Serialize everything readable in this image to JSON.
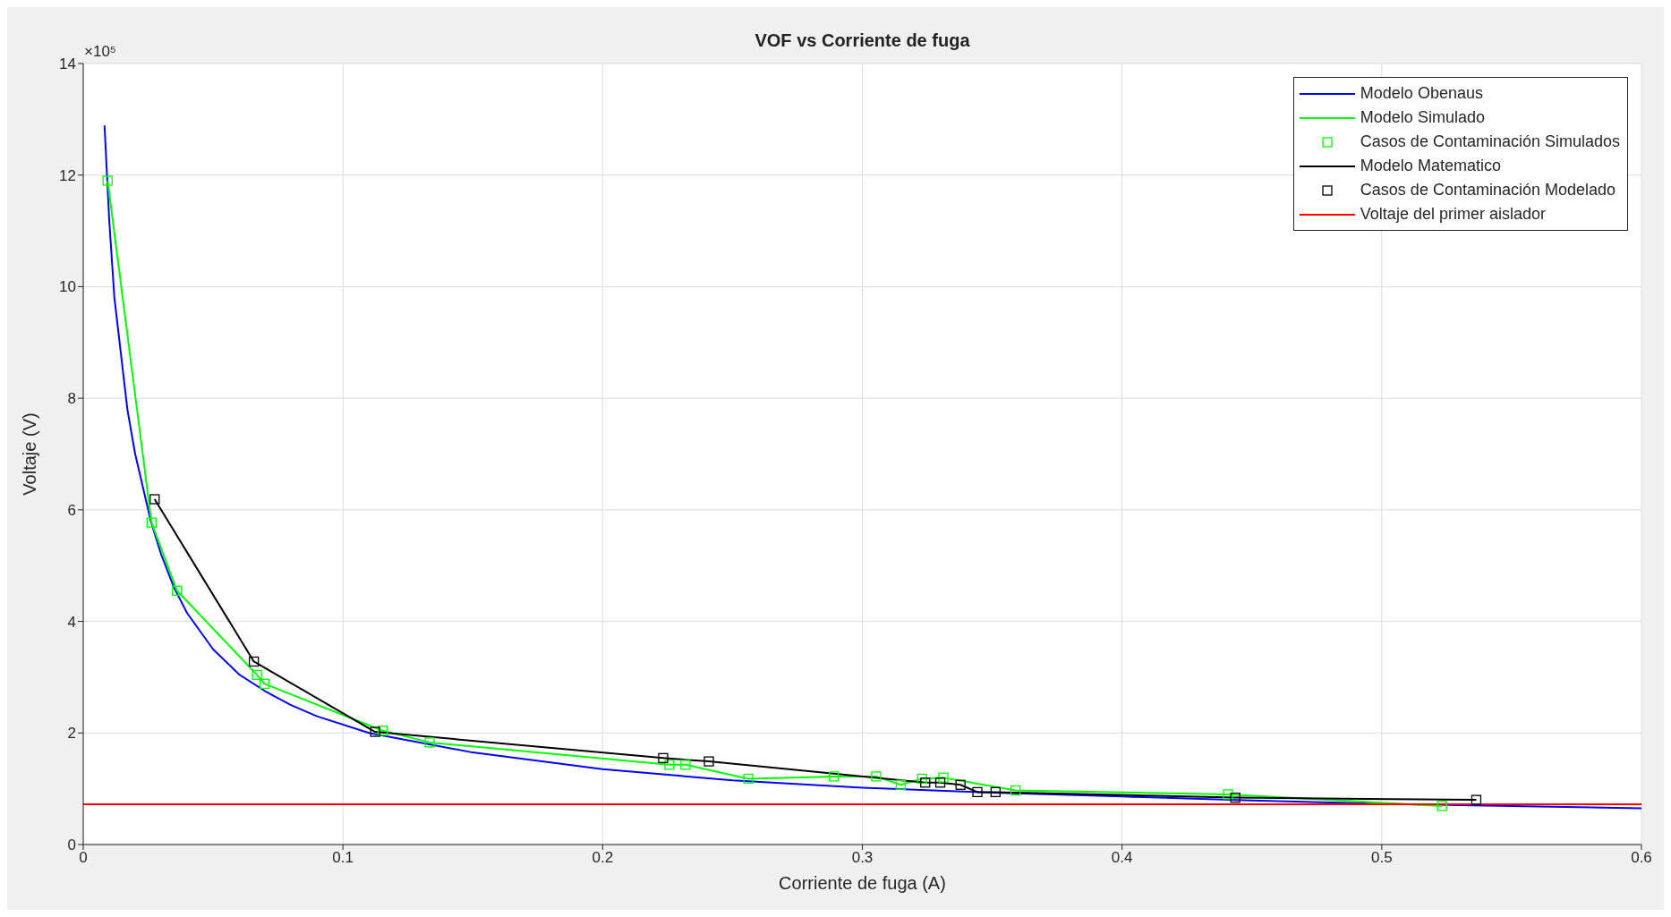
{
  "chart_data": {
    "type": "line",
    "title": "VOF vs Corriente de fuga",
    "xlabel": "Corriente de fuga (A)",
    "ylabel": "Voltaje (V)",
    "annotations": [
      "×10⁵"
    ],
    "xlim": [
      0,
      0.6
    ],
    "xticks": [
      0,
      0.1,
      0.2,
      0.3,
      0.4,
      0.5,
      0.6
    ],
    "ylim": [
      0,
      14
    ],
    "yticks": [
      0,
      2,
      4,
      6,
      8,
      10,
      12,
      14
    ],
    "grid": true,
    "legend": "top right",
    "line_style": "solid",
    "series": [
      {
        "name": "Modelo Obenaus",
        "marker": "none",
        "color": "#0000ff",
        "x": [
          0.0082,
          0.01,
          0.012,
          0.015,
          0.017,
          0.02,
          0.026,
          0.03,
          0.035,
          0.04,
          0.05,
          0.06,
          0.07,
          0.08,
          0.09,
          0.11,
          0.15,
          0.2,
          0.25,
          0.3,
          0.35,
          0.4,
          0.45,
          0.5,
          0.55,
          0.6
        ],
        "values": [
          12.89,
          11.2,
          9.8,
          8.6,
          7.8,
          7.0,
          5.8,
          5.2,
          4.6,
          4.15,
          3.5,
          3.05,
          2.75,
          2.5,
          2.3,
          2.0,
          1.65,
          1.35,
          1.15,
          1.02,
          0.93,
          0.86,
          0.79,
          0.73,
          0.69,
          0.65
        ]
      },
      {
        "name": "Modelo Simulado",
        "marker": "none",
        "color": "#00ff00",
        "x": [
          0.0094,
          0.0263,
          0.0361,
          0.0669,
          0.0698,
          0.1153,
          0.1334,
          0.2257,
          0.2319,
          0.2561,
          0.289,
          0.3053,
          0.3148,
          0.323,
          0.3312,
          0.359,
          0.4408,
          0.5232
        ],
        "values": [
          11.9,
          5.77,
          4.55,
          3.04,
          2.88,
          2.04,
          1.83,
          1.43,
          1.43,
          1.18,
          1.22,
          1.22,
          1.07,
          1.18,
          1.2,
          0.97,
          0.9,
          0.69
        ]
      },
      {
        "name": "Casos de Contaminación Simulados",
        "type": "scatter",
        "marker": "square",
        "color": "#00ff00",
        "x": [
          0.0094,
          0.0263,
          0.0361,
          0.0669,
          0.0698,
          0.1153,
          0.1334,
          0.2257,
          0.2319,
          0.2561,
          0.289,
          0.3053,
          0.3148,
          0.323,
          0.3312,
          0.359,
          0.4408,
          0.5232
        ],
        "values": [
          11.9,
          5.77,
          4.55,
          3.04,
          2.88,
          2.04,
          1.83,
          1.43,
          1.43,
          1.18,
          1.22,
          1.22,
          1.07,
          1.18,
          1.2,
          0.97,
          0.9,
          0.69
        ]
      },
      {
        "name": "Modelo Matematico",
        "marker": "none",
        "color": "#000000",
        "x": [
          0.0275,
          0.0657,
          0.1124,
          0.2233,
          0.2409,
          0.3242,
          0.33,
          0.3378,
          0.3443,
          0.3513,
          0.4436,
          0.5364
        ],
        "values": [
          6.19,
          3.28,
          2.02,
          1.55,
          1.49,
          1.11,
          1.11,
          1.07,
          0.94,
          0.94,
          0.84,
          0.8
        ]
      },
      {
        "name": "Casos de Contaminación Modelado",
        "type": "scatter",
        "marker": "square",
        "color": "#000000",
        "x": [
          0.0275,
          0.0657,
          0.1124,
          0.2233,
          0.2409,
          0.3242,
          0.33,
          0.3378,
          0.3443,
          0.3513,
          0.4436,
          0.5364
        ],
        "values": [
          6.19,
          3.28,
          2.02,
          1.55,
          1.49,
          1.11,
          1.11,
          1.07,
          0.94,
          0.94,
          0.84,
          0.8
        ]
      },
      {
        "name": "Voltaje del primer aislador",
        "marker": "none",
        "color": "#ff0000",
        "x": [
          0,
          0.6
        ],
        "values": [
          0.72,
          0.72
        ]
      }
    ]
  }
}
